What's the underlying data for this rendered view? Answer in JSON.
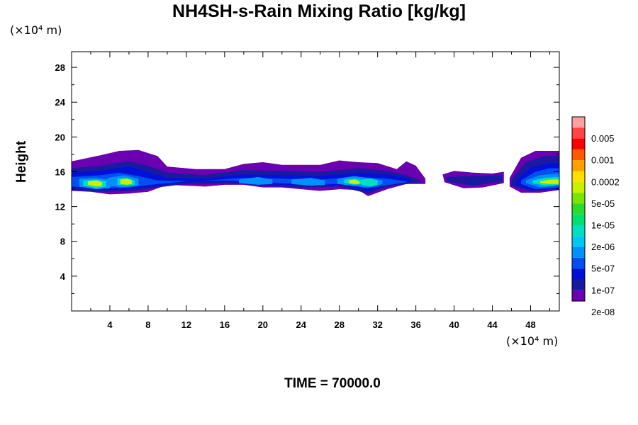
{
  "chart_data": {
    "type": "heatmap",
    "title": "NH4SH-s-Rain Mixing Ratio [kg/kg]",
    "ylabel": "Height",
    "x_unit": "(×10⁴ m)",
    "y_unit": "(×10⁴ m)",
    "x_ticks": [
      "4",
      "8",
      "12",
      "16",
      "20",
      "24",
      "28",
      "32",
      "36",
      "40",
      "44",
      "48"
    ],
    "y_ticks": [
      "4",
      "8",
      "12",
      "16",
      "20",
      "24",
      "28"
    ],
    "xlim": [
      0,
      51
    ],
    "ylim": [
      0,
      29.8
    ],
    "footer": "TIME = 70000.0",
    "colorbar": {
      "labels": [
        "0.005",
        "0.001",
        "0.0002",
        "5e-05",
        "1e-05",
        "2e-06",
        "5e-07",
        "1e-07",
        "2e-08"
      ],
      "colors": [
        "#ff9f9f",
        "#ff4444",
        "#ff0000",
        "#ff5a00",
        "#ffa000",
        "#ffe000",
        "#c8f000",
        "#78e600",
        "#2cd92c",
        "#00e070",
        "#00e0c0",
        "#00c8f0",
        "#0090ff",
        "#0050f0",
        "#0010d8",
        "#1a1aa0",
        "#6a00b0"
      ]
    },
    "bands": [
      {
        "level": 0,
        "top": [
          [
            0,
            17.2
          ],
          [
            3,
            17.9
          ],
          [
            5,
            18.4
          ],
          [
            7,
            18.5
          ],
          [
            9,
            17.8
          ],
          [
            10,
            16.6
          ],
          [
            13,
            16.3
          ],
          [
            16,
            16.3
          ],
          [
            18,
            16.9
          ],
          [
            20,
            17.1
          ],
          [
            22,
            16.8
          ],
          [
            24,
            16.8
          ],
          [
            26,
            16.8
          ],
          [
            28,
            17.3
          ],
          [
            30,
            17.1
          ],
          [
            32,
            17.0
          ],
          [
            34,
            16.3
          ],
          [
            35,
            17.2
          ],
          [
            36,
            16.7
          ],
          [
            37,
            15.2
          ]
        ],
        "bottom": [
          [
            37,
            14.6
          ],
          [
            35,
            14.6
          ],
          [
            33,
            14.0
          ],
          [
            31,
            13.2
          ],
          [
            30,
            13.9
          ],
          [
            28,
            14.0
          ],
          [
            26,
            13.8
          ],
          [
            24,
            14.0
          ],
          [
            22,
            14.2
          ],
          [
            20,
            14.2
          ],
          [
            18,
            14.5
          ],
          [
            16,
            14.5
          ],
          [
            14,
            14.3
          ],
          [
            12,
            14.4
          ],
          [
            10,
            14.5
          ],
          [
            8,
            13.7
          ],
          [
            6,
            13.5
          ],
          [
            4,
            13.4
          ],
          [
            2,
            13.7
          ],
          [
            0,
            13.8
          ]
        ]
      },
      {
        "level": 0,
        "top": [
          [
            38.8,
            15.7
          ],
          [
            40,
            16.1
          ],
          [
            42,
            15.9
          ],
          [
            44,
            15.8
          ],
          [
            45.2,
            16.0
          ]
        ],
        "bottom": [
          [
            45.2,
            14.7
          ],
          [
            43,
            14.2
          ],
          [
            41,
            14.1
          ],
          [
            39,
            14.8
          ]
        ]
      },
      {
        "level": 0,
        "top": [
          [
            45.8,
            15.3
          ],
          [
            47,
            17.6
          ],
          [
            48.5,
            18.4
          ],
          [
            50,
            18.4
          ],
          [
            51,
            18.4
          ]
        ],
        "bottom": [
          [
            51,
            13.9
          ],
          [
            49,
            13.6
          ],
          [
            47,
            13.6
          ],
          [
            45.8,
            14.3
          ]
        ]
      },
      {
        "level": 1,
        "top": [
          [
            0,
            16.4
          ],
          [
            3,
            16.7
          ],
          [
            6,
            17.2
          ],
          [
            8,
            16.7
          ],
          [
            10,
            15.9
          ],
          [
            14,
            15.6
          ],
          [
            18,
            16.2
          ],
          [
            22,
            16.1
          ],
          [
            26,
            16.0
          ],
          [
            30,
            16.4
          ],
          [
            33,
            16.1
          ],
          [
            35,
            15.6
          ],
          [
            36.5,
            15.0
          ]
        ],
        "bottom": [
          [
            36.5,
            14.8
          ],
          [
            33,
            14.3
          ],
          [
            31,
            13.5
          ],
          [
            28,
            14.3
          ],
          [
            24,
            14.2
          ],
          [
            20,
            14.4
          ],
          [
            16,
            14.7
          ],
          [
            12,
            14.6
          ],
          [
            9,
            14.2
          ],
          [
            6,
            13.8
          ],
          [
            3,
            13.7
          ],
          [
            0,
            13.9
          ]
        ]
      },
      {
        "level": 1,
        "top": [
          [
            39.2,
            15.4
          ],
          [
            42,
            15.5
          ],
          [
            45,
            15.6
          ]
        ],
        "bottom": [
          [
            45,
            14.9
          ],
          [
            42,
            14.4
          ],
          [
            39.2,
            14.9
          ]
        ]
      },
      {
        "level": 1,
        "top": [
          [
            46,
            15.1
          ],
          [
            47.5,
            17.1
          ],
          [
            49.5,
            17.8
          ],
          [
            51,
            17.8
          ]
        ],
        "bottom": [
          [
            51,
            14.0
          ],
          [
            48,
            13.8
          ],
          [
            46,
            14.4
          ]
        ]
      },
      {
        "level": 2,
        "top": [
          [
            0,
            15.9
          ],
          [
            3,
            16.1
          ],
          [
            6,
            16.6
          ],
          [
            8,
            16.0
          ],
          [
            10,
            15.3
          ],
          [
            14,
            15.2
          ],
          [
            18,
            15.7
          ],
          [
            22,
            15.6
          ],
          [
            26,
            15.5
          ],
          [
            30,
            15.9
          ],
          [
            33,
            15.7
          ],
          [
            35.5,
            15.2
          ]
        ],
        "bottom": [
          [
            35.5,
            14.9
          ],
          [
            33,
            14.4
          ],
          [
            31,
            13.8
          ],
          [
            28,
            14.5
          ],
          [
            24,
            14.4
          ],
          [
            20,
            14.6
          ],
          [
            16,
            14.9
          ],
          [
            12,
            14.8
          ],
          [
            9,
            14.4
          ],
          [
            6,
            14.0
          ],
          [
            3,
            13.9
          ],
          [
            0,
            14.1
          ]
        ]
      },
      {
        "level": 2,
        "top": [
          [
            46.5,
            15.0
          ],
          [
            48,
            16.5
          ],
          [
            50,
            17.0
          ],
          [
            51,
            17.0
          ]
        ],
        "bottom": [
          [
            51,
            14.1
          ],
          [
            48,
            13.9
          ],
          [
            46.5,
            14.5
          ]
        ]
      },
      {
        "level": 3,
        "top": [
          [
            0,
            15.4
          ],
          [
            3,
            15.6
          ],
          [
            5,
            15.9
          ],
          [
            7,
            15.5
          ],
          [
            9,
            15.0
          ],
          [
            13,
            14.9
          ],
          [
            18,
            15.3
          ],
          [
            22,
            15.2
          ],
          [
            26,
            15.1
          ],
          [
            30,
            15.4
          ],
          [
            33,
            15.2
          ],
          [
            35,
            14.9
          ]
        ],
        "bottom": [
          [
            35,
            14.8
          ],
          [
            31,
            14.1
          ],
          [
            28,
            14.6
          ],
          [
            24,
            14.6
          ],
          [
            20,
            14.8
          ],
          [
            16,
            15.0
          ],
          [
            12,
            14.9
          ],
          [
            9,
            14.6
          ],
          [
            6,
            14.2
          ],
          [
            3,
            14.1
          ],
          [
            0,
            14.3
          ]
        ]
      },
      {
        "level": 3,
        "top": [
          [
            47,
            15.0
          ],
          [
            48.5,
            16.0
          ],
          [
            50,
            16.4
          ],
          [
            51,
            16.4
          ]
        ],
        "bottom": [
          [
            51,
            14.2
          ],
          [
            48.5,
            14.0
          ],
          [
            47,
            14.6
          ]
        ]
      },
      {
        "level": 4,
        "top": [
          [
            0.8,
            15.2
          ],
          [
            2.5,
            15.3
          ],
          [
            4,
            15.1
          ]
        ],
        "bottom": [
          [
            4,
            14.1
          ],
          [
            2.5,
            14.0
          ],
          [
            0.8,
            14.3
          ]
        ]
      },
      {
        "level": 4,
        "top": [
          [
            3.8,
            15.3
          ],
          [
            5.5,
            15.6
          ],
          [
            7,
            15.2
          ]
        ],
        "bottom": [
          [
            7,
            14.4
          ],
          [
            5.5,
            14.2
          ],
          [
            3.8,
            14.4
          ]
        ]
      },
      {
        "level": 4,
        "top": [
          [
            17.5,
            15.1
          ],
          [
            19.5,
            15.4
          ],
          [
            21,
            15.1
          ]
        ],
        "bottom": [
          [
            21,
            14.6
          ],
          [
            19.5,
            14.5
          ],
          [
            17.5,
            14.7
          ]
        ]
      },
      {
        "level": 4,
        "top": [
          [
            23,
            15.1
          ],
          [
            25,
            15.3
          ],
          [
            26.5,
            15.0
          ]
        ],
        "bottom": [
          [
            26.5,
            14.5
          ],
          [
            25,
            14.4
          ],
          [
            23,
            14.6
          ]
        ]
      },
      {
        "level": 4,
        "top": [
          [
            27.8,
            15.2
          ],
          [
            29.5,
            15.5
          ],
          [
            31,
            15.3
          ],
          [
            32.5,
            15.0
          ]
        ],
        "bottom": [
          [
            32.5,
            14.6
          ],
          [
            31,
            14.2
          ],
          [
            29.5,
            14.4
          ],
          [
            27.8,
            14.6
          ]
        ]
      },
      {
        "level": 4,
        "top": [
          [
            47.5,
            15.0
          ],
          [
            49,
            15.6
          ],
          [
            51,
            15.8
          ]
        ],
        "bottom": [
          [
            51,
            14.4
          ],
          [
            49,
            14.2
          ],
          [
            47.5,
            14.7
          ]
        ]
      },
      {
        "level": 6,
        "top": [
          [
            1.2,
            15.0
          ],
          [
            2.6,
            15.1
          ],
          [
            3.6,
            14.9
          ]
        ],
        "bottom": [
          [
            3.6,
            14.3
          ],
          [
            2.6,
            14.1
          ],
          [
            1.2,
            14.4
          ]
        ]
      },
      {
        "level": 6,
        "top": [
          [
            4.8,
            15.2
          ],
          [
            5.8,
            15.3
          ],
          [
            6.6,
            15.0
          ]
        ],
        "bottom": [
          [
            6.6,
            14.5
          ],
          [
            5.8,
            14.4
          ],
          [
            4.8,
            14.5
          ]
        ]
      },
      {
        "level": 6,
        "top": [
          [
            28.5,
            15.1
          ],
          [
            29.6,
            15.2
          ],
          [
            30.6,
            15.0
          ]
        ],
        "bottom": [
          [
            30.6,
            14.6
          ],
          [
            29.6,
            14.5
          ],
          [
            28.5,
            14.7
          ]
        ]
      },
      {
        "level": 6,
        "top": [
          [
            30.3,
            15.1
          ],
          [
            31.3,
            15.2
          ],
          [
            32,
            15.0
          ]
        ],
        "bottom": [
          [
            32,
            14.5
          ],
          [
            31.3,
            14.3
          ],
          [
            30.3,
            14.5
          ]
        ]
      },
      {
        "level": 6,
        "top": [
          [
            48.2,
            15.0
          ],
          [
            49.5,
            15.3
          ],
          [
            51,
            15.4
          ]
        ],
        "bottom": [
          [
            51,
            14.5
          ],
          [
            49.5,
            14.4
          ],
          [
            48.2,
            14.7
          ]
        ]
      },
      {
        "level": 10,
        "top": [
          [
            1.7,
            14.9
          ],
          [
            2.6,
            15.0
          ],
          [
            3.2,
            14.8
          ]
        ],
        "bottom": [
          [
            3.2,
            14.4
          ],
          [
            2.6,
            14.3
          ],
          [
            1.7,
            14.5
          ]
        ]
      },
      {
        "level": 10,
        "top": [
          [
            5.1,
            15.1
          ],
          [
            5.8,
            15.2
          ],
          [
            6.3,
            15.0
          ]
        ],
        "bottom": [
          [
            6.3,
            14.6
          ],
          [
            5.8,
            14.5
          ],
          [
            5.1,
            14.6
          ]
        ]
      },
      {
        "level": 10,
        "top": [
          [
            29,
            15.0
          ],
          [
            29.6,
            15.1
          ],
          [
            30.1,
            14.9
          ]
        ],
        "bottom": [
          [
            30.1,
            14.6
          ],
          [
            29.6,
            14.6
          ],
          [
            29,
            14.7
          ]
        ]
      },
      {
        "level": 10,
        "top": [
          [
            49,
            14.9
          ],
          [
            50,
            15.1
          ],
          [
            51,
            15.1
          ]
        ],
        "bottom": [
          [
            51,
            14.6
          ],
          [
            50,
            14.6
          ],
          [
            49,
            14.7
          ]
        ]
      }
    ]
  }
}
